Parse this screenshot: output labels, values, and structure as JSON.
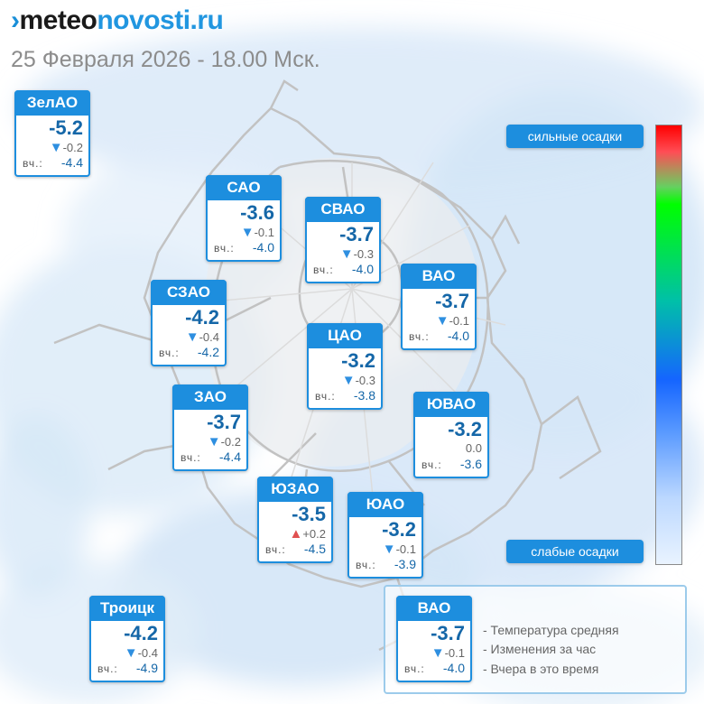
{
  "site": {
    "logo_mark": "›",
    "logo_part1": "meteo",
    "logo_part2": "novosti.ru"
  },
  "datetime": "25 Февраля 2026 - 18.00 Мск.",
  "yesterday_label": "вч.:",
  "districts": [
    {
      "name": "ЗелАО",
      "temp": "-5.2",
      "arrow": "down",
      "change": "-0.2",
      "yesterday": "-4.4"
    },
    {
      "name": "САО",
      "temp": "-3.6",
      "arrow": "down",
      "change": "-0.1",
      "yesterday": "-4.0"
    },
    {
      "name": "СВАО",
      "temp": "-3.7",
      "arrow": "down",
      "change": "-0.3",
      "yesterday": "-4.0"
    },
    {
      "name": "ВАО",
      "temp": "-3.7",
      "arrow": "down",
      "change": "-0.1",
      "yesterday": "-4.0"
    },
    {
      "name": "СЗАО",
      "temp": "-4.2",
      "arrow": "down",
      "change": "-0.4",
      "yesterday": "-4.2"
    },
    {
      "name": "ЦАО",
      "temp": "-3.2",
      "arrow": "down",
      "change": "-0.3",
      "yesterday": "-3.8"
    },
    {
      "name": "ЗАО",
      "temp": "-3.7",
      "arrow": "down",
      "change": "-0.2",
      "yesterday": "-4.4"
    },
    {
      "name": "ЮВАО",
      "temp": "-3.2",
      "arrow": "none",
      "change": "0.0",
      "yesterday": "-3.6"
    },
    {
      "name": "ЮЗАО",
      "temp": "-3.5",
      "arrow": "up",
      "change": "+0.2",
      "yesterday": "-4.5"
    },
    {
      "name": "ЮАО",
      "temp": "-3.2",
      "arrow": "down",
      "change": "-0.1",
      "yesterday": "-3.9"
    },
    {
      "name": "Троицк",
      "temp": "-4.2",
      "arrow": "down",
      "change": "-0.4",
      "yesterday": "-4.9"
    }
  ],
  "precip_scale": {
    "strong_label": "сильные осадки",
    "weak_label": "слабые осадки"
  },
  "legend": {
    "sample": {
      "name": "ВАО",
      "temp": "-3.7",
      "arrow": "down",
      "change": "-0.1",
      "yesterday": "-4.0"
    },
    "line1": "- Температура средняя",
    "line2": "- Изменения за час",
    "line3": "- Вчера в это время"
  },
  "colors": {
    "accent": "#1d8ede",
    "temp_text": "#1567a8",
    "arrow_down": "#2e8fe0",
    "arrow_up": "#e05050",
    "precip_light": "#dbeaf8"
  }
}
